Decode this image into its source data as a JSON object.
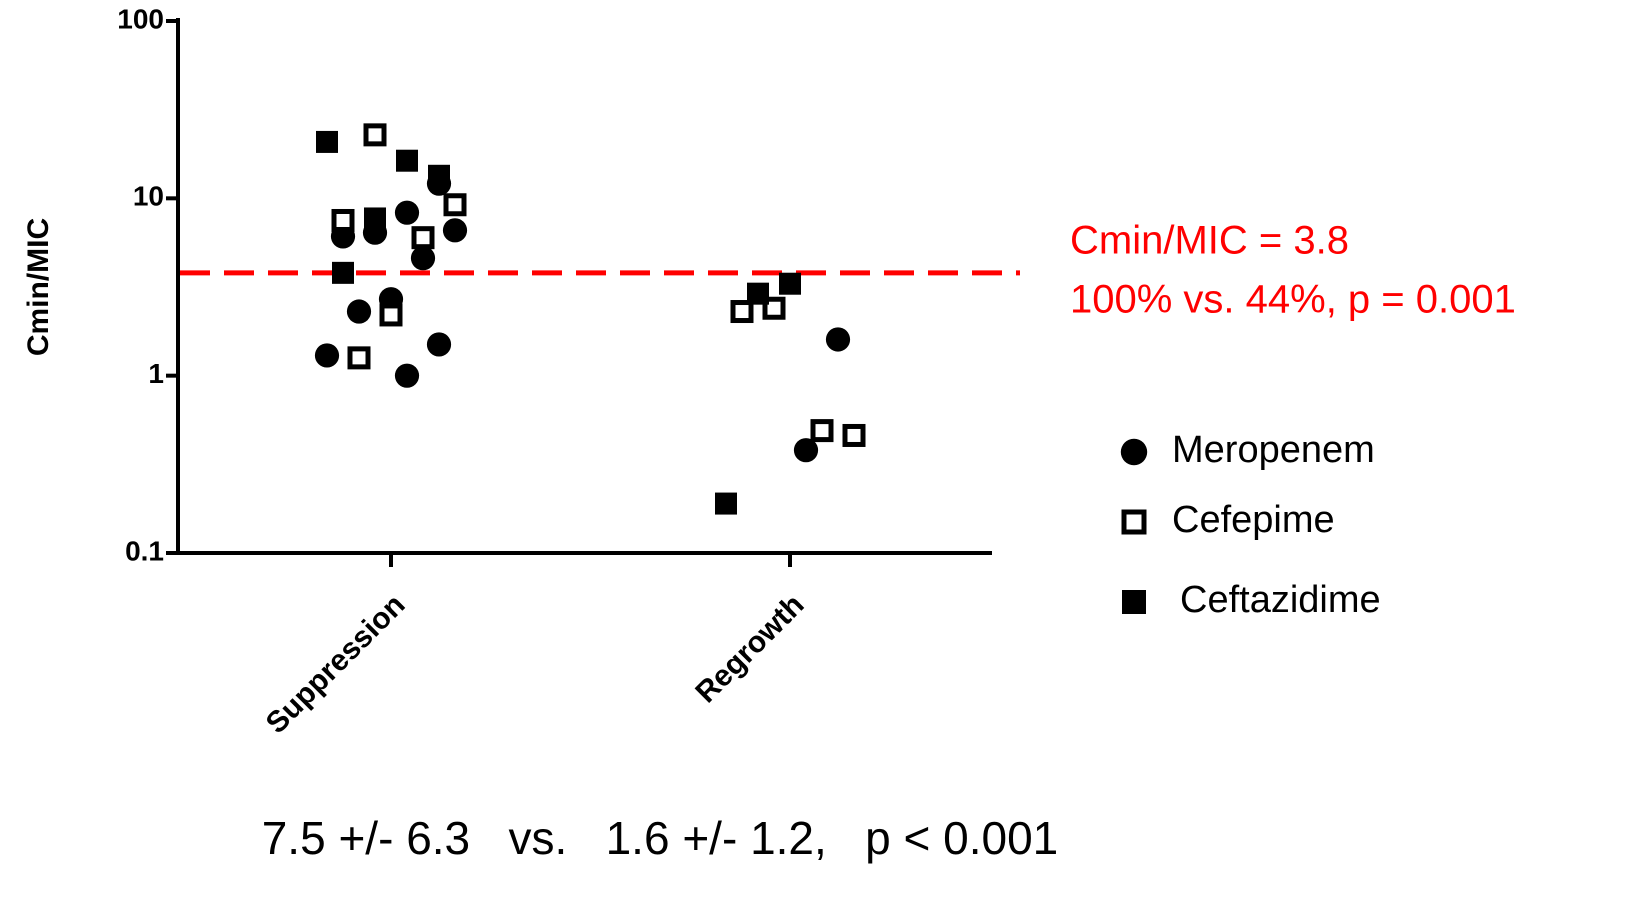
{
  "chart_data": {
    "type": "scatter",
    "y_label": "Cmin/MIC",
    "categories": [
      "Suppression",
      "Regrowth"
    ],
    "ylim": [
      0.1,
      100
    ],
    "yticks": [
      0.1,
      1,
      10,
      100
    ],
    "log_y": true,
    "series": [
      {
        "name": "Meropenem",
        "color": "#000000",
        "marker": "circle",
        "x": [
          "Suppression",
          "Suppression",
          "Suppression",
          "Suppression",
          "Suppression",
          "Suppression",
          "Suppression",
          "Suppression",
          "Suppression",
          "Suppression",
          "Suppression",
          "Regrowth",
          "Regrowth"
        ],
        "values": [
          12.1,
          8.3,
          6.4,
          6.1,
          6.6,
          4.6,
          2.7,
          2.3,
          1.3,
          1.5,
          1.0,
          1.6,
          0.38
        ]
      },
      {
        "name": "Cefepime",
        "color": "#000000",
        "marker": "square-open",
        "x": [
          "Suppression",
          "Suppression",
          "Suppression",
          "Suppression",
          "Suppression",
          "Suppression",
          "Regrowth",
          "Regrowth",
          "Regrowth",
          "Regrowth"
        ],
        "values": [
          22.8,
          7.5,
          9.2,
          6.0,
          2.2,
          1.26,
          2.4,
          2.3,
          0.46,
          0.49
        ]
      },
      {
        "name": "Ceftazidime",
        "color": "#000000",
        "marker": "square",
        "x": [
          "Suppression",
          "Suppression",
          "Suppression",
          "Suppression",
          "Suppression",
          "Regrowth",
          "Regrowth",
          "Regrowth"
        ],
        "values": [
          20.8,
          13.4,
          16.3,
          7.7,
          3.8,
          3.3,
          2.9,
          0.19
        ]
      }
    ],
    "reference_line": {
      "value": 3.8,
      "color": "#ff0000"
    },
    "annotations": [
      "Cmin/MIC = 3.8",
      "100% vs. 44%, p = 0.001"
    ],
    "footnote": "7.5 +/- 6.3   vs.   1.6 +/- 1.2,   p < 0.001"
  }
}
